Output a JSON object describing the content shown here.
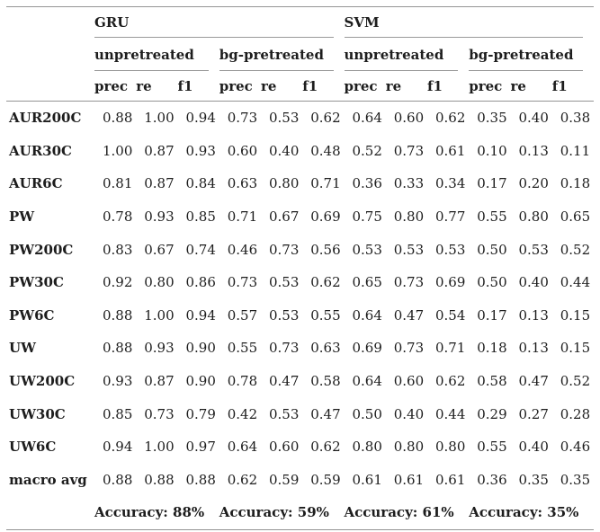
{
  "table": {
    "groups": [
      {
        "label": "GRU",
        "subgroups": [
          "unpretreated",
          "bg-pretreated"
        ]
      },
      {
        "label": "SVM",
        "subgroups": [
          "unpretreated",
          "bg-pretreated"
        ]
      }
    ],
    "metric_headers": [
      "prec",
      "re",
      "f1"
    ],
    "rows": [
      {
        "label": "AUR200C",
        "values": [
          "0.88",
          "1.00",
          "0.94",
          "0.73",
          "0.53",
          "0.62",
          "0.64",
          "0.60",
          "0.62",
          "0.35",
          "0.40",
          "0.38"
        ]
      },
      {
        "label": "AUR30C",
        "values": [
          "1.00",
          "0.87",
          "0.93",
          "0.60",
          "0.40",
          "0.48",
          "0.52",
          "0.73",
          "0.61",
          "0.10",
          "0.13",
          "0.11"
        ]
      },
      {
        "label": "AUR6C",
        "values": [
          "0.81",
          "0.87",
          "0.84",
          "0.63",
          "0.80",
          "0.71",
          "0.36",
          "0.33",
          "0.34",
          "0.17",
          "0.20",
          "0.18"
        ]
      },
      {
        "label": "PW",
        "values": [
          "0.78",
          "0.93",
          "0.85",
          "0.71",
          "0.67",
          "0.69",
          "0.75",
          "0.80",
          "0.77",
          "0.55",
          "0.80",
          "0.65"
        ]
      },
      {
        "label": "PW200C",
        "values": [
          "0.83",
          "0.67",
          "0.74",
          "0.46",
          "0.73",
          "0.56",
          "0.53",
          "0.53",
          "0.53",
          "0.50",
          "0.53",
          "0.52"
        ]
      },
      {
        "label": "PW30C",
        "values": [
          "0.92",
          "0.80",
          "0.86",
          "0.73",
          "0.53",
          "0.62",
          "0.65",
          "0.73",
          "0.69",
          "0.50",
          "0.40",
          "0.44"
        ]
      },
      {
        "label": "PW6C",
        "values": [
          "0.88",
          "1.00",
          "0.94",
          "0.57",
          "0.53",
          "0.55",
          "0.64",
          "0.47",
          "0.54",
          "0.17",
          "0.13",
          "0.15"
        ]
      },
      {
        "label": "UW",
        "values": [
          "0.88",
          "0.93",
          "0.90",
          "0.55",
          "0.73",
          "0.63",
          "0.69",
          "0.73",
          "0.71",
          "0.18",
          "0.13",
          "0.15"
        ]
      },
      {
        "label": "UW200C",
        "values": [
          "0.93",
          "0.87",
          "0.90",
          "0.78",
          "0.47",
          "0.58",
          "0.64",
          "0.60",
          "0.62",
          "0.58",
          "0.47",
          "0.52"
        ]
      },
      {
        "label": "UW30C",
        "values": [
          "0.85",
          "0.73",
          "0.79",
          "0.42",
          "0.53",
          "0.47",
          "0.50",
          "0.40",
          "0.44",
          "0.29",
          "0.27",
          "0.28"
        ]
      },
      {
        "label": "UW6C",
        "values": [
          "0.94",
          "1.00",
          "0.97",
          "0.64",
          "0.60",
          "0.62",
          "0.80",
          "0.80",
          "0.80",
          "0.55",
          "0.40",
          "0.46"
        ]
      },
      {
        "label": "macro avg",
        "values": [
          "0.88",
          "0.88",
          "0.88",
          "0.62",
          "0.59",
          "0.59",
          "0.61",
          "0.61",
          "0.61",
          "0.36",
          "0.35",
          "0.35"
        ]
      }
    ],
    "accuracy": [
      "Accuracy: 88%",
      "Accuracy: 59%",
      "Accuracy: 61%",
      "Accuracy: 35%"
    ]
  },
  "colors": {
    "background": "#ffffff",
    "text": "#1d1d1d",
    "rule_strong": "#949494",
    "rule_light": "#9a9a9a"
  }
}
